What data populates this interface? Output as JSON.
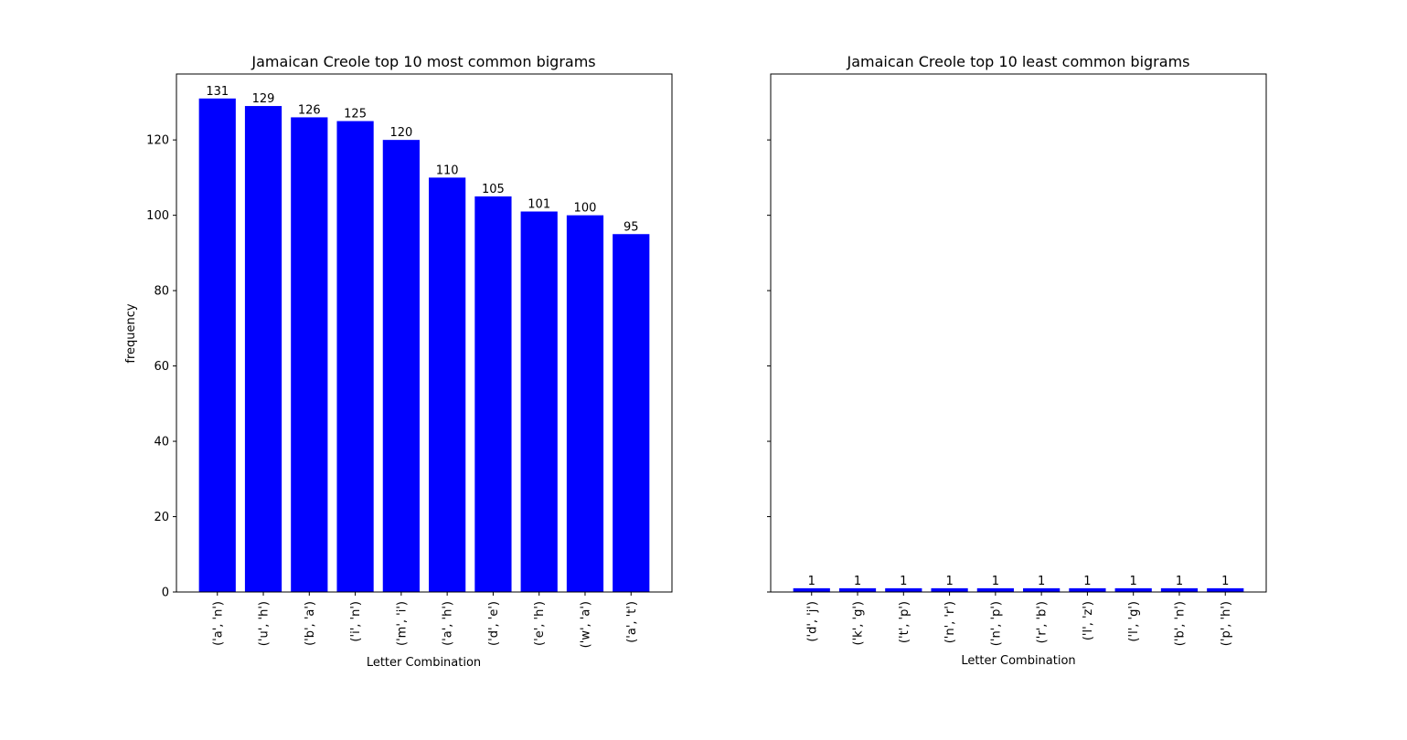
{
  "chart_data": [
    {
      "type": "bar",
      "title": "Jamaican Creole top 10 most common bigrams",
      "xlabel": "Letter Combination",
      "ylabel": "frequency",
      "categories": [
        "('a', 'n')",
        "('u', 'h')",
        "('b', 'a')",
        "('i', 'n')",
        "('m', 'i')",
        "('a', 'h')",
        "('d', 'e')",
        "('e', 'h')",
        "('w', 'a')",
        "('a', 't')"
      ],
      "values": [
        131,
        129,
        126,
        125,
        120,
        110,
        105,
        101,
        100,
        95
      ],
      "ylim": [
        0,
        137.5
      ],
      "yticks": [
        0,
        20,
        40,
        60,
        80,
        100,
        120
      ],
      "show_ytick_labels": true,
      "bar_color": "#0000ff",
      "grid": false
    },
    {
      "type": "bar",
      "title": "Jamaican Creole top 10 least common bigrams",
      "xlabel": "Letter Combination",
      "ylabel": "",
      "categories": [
        "('d', 'j')",
        "('k', 'g')",
        "('t', 'p')",
        "('n', 'r')",
        "('n', 'p')",
        "('r', 'b')",
        "('l', 'z')",
        "('l', 'g')",
        "('b', 'n')",
        "('p', 'h')"
      ],
      "values": [
        1,
        1,
        1,
        1,
        1,
        1,
        1,
        1,
        1,
        1
      ],
      "ylim": [
        0,
        137.5
      ],
      "yticks": [
        0,
        20,
        40,
        60,
        80,
        100,
        120
      ],
      "show_ytick_labels": false,
      "bar_color": "#0000ff",
      "grid": false
    }
  ]
}
